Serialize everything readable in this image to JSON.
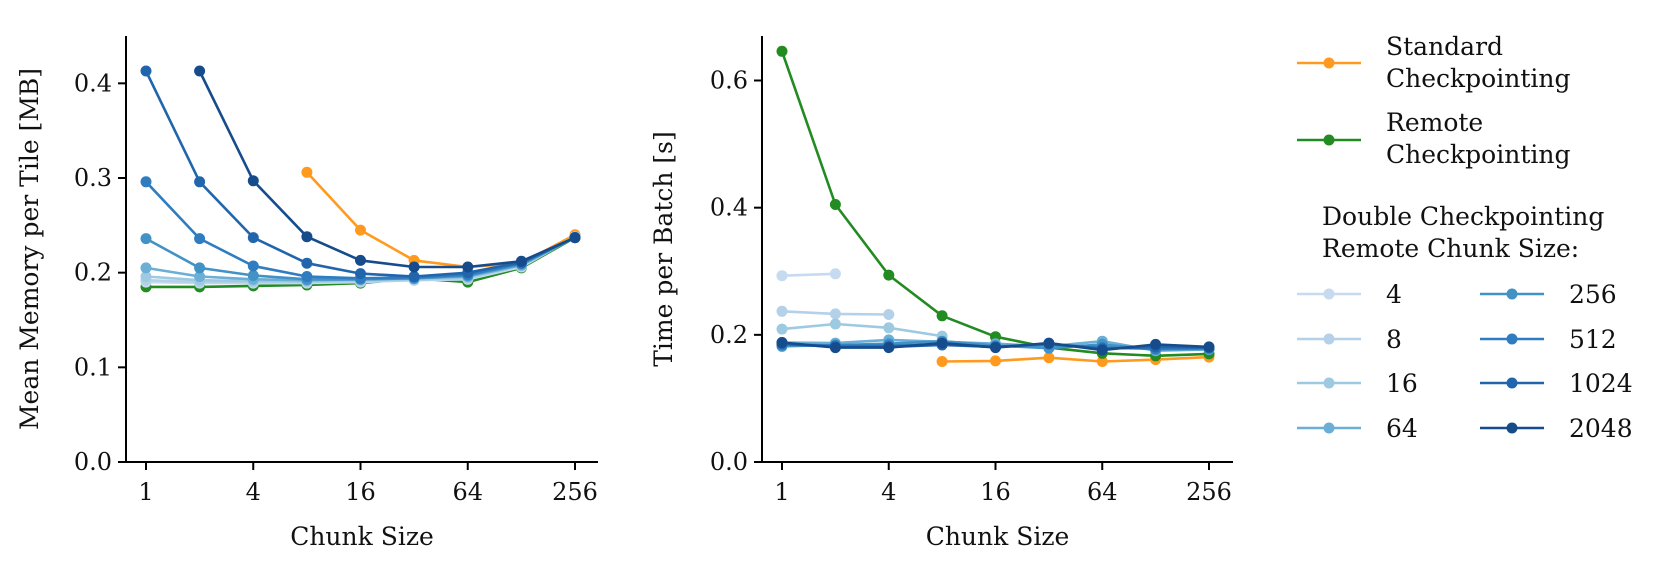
{
  "chart_data": [
    {
      "type": "line",
      "xscale": "log2",
      "x": [
        1,
        2,
        4,
        8,
        16,
        32,
        64,
        128,
        256
      ],
      "xticks": [
        1,
        4,
        16,
        64,
        256
      ],
      "xtick_labels": [
        "1",
        "4",
        "16",
        "64",
        "256"
      ],
      "xlabel": "Chunk Size",
      "ylabel": "Mean Memory per Tile [MB]",
      "ylim": [
        0,
        0.45
      ],
      "yticks": [
        0,
        0.1,
        0.2,
        0.3,
        0.4
      ],
      "ytick_labels": [
        "0.0",
        "0.1",
        "0.2",
        "0.3",
        "0.4"
      ],
      "series": [
        {
          "name": "Standard Checkpointing",
          "color": "#ff9a1f",
          "x": [
            8,
            16,
            32,
            64,
            128,
            256
          ],
          "values": [
            0.306,
            0.245,
            0.213,
            0.206,
            0.21,
            0.24
          ]
        },
        {
          "name": "Remote Checkpointing",
          "color": "#228b22",
          "x": [
            1,
            2,
            4,
            8,
            16,
            32,
            64,
            128,
            256
          ],
          "values": [
            0.185,
            0.185,
            0.186,
            0.187,
            0.189,
            0.194,
            0.19,
            0.205,
            0.237
          ]
        },
        {
          "name": "4",
          "color": "#c6dbef",
          "x": [
            1,
            2,
            4,
            8,
            16,
            32,
            64,
            128,
            256
          ],
          "values": [
            0.19,
            0.189,
            0.189,
            0.189,
            0.19,
            0.192,
            0.193,
            0.206,
            0.238
          ]
        },
        {
          "name": "8",
          "color": "#b4d1e9",
          "x": [
            1,
            2,
            4,
            8,
            16,
            32,
            64,
            128,
            256
          ],
          "values": [
            0.192,
            0.19,
            0.19,
            0.19,
            0.191,
            0.192,
            0.194,
            0.207,
            0.238
          ]
        },
        {
          "name": "16",
          "color": "#9ecae1",
          "x": [
            1,
            2,
            4,
            8,
            16,
            32,
            64,
            128,
            256
          ],
          "values": [
            0.196,
            0.192,
            0.191,
            0.191,
            0.192,
            0.193,
            0.195,
            0.208,
            0.238
          ]
        },
        {
          "name": "64",
          "color": "#6baed6",
          "x": [
            1,
            2,
            4,
            8,
            16,
            32,
            64,
            128,
            256
          ],
          "values": [
            0.205,
            0.196,
            0.193,
            0.192,
            0.193,
            0.194,
            0.196,
            0.208,
            0.237
          ]
        },
        {
          "name": "256",
          "color": "#4292c6",
          "x": [
            1,
            2,
            4,
            8,
            16,
            32,
            64,
            128,
            256
          ],
          "values": [
            0.236,
            0.205,
            0.197,
            0.193,
            0.193,
            0.194,
            0.197,
            0.209,
            0.237
          ]
        },
        {
          "name": "512",
          "color": "#2f7dc0",
          "x": [
            1,
            2,
            4,
            8,
            16,
            32,
            64,
            128,
            256
          ],
          "values": [
            0.296,
            0.236,
            0.207,
            0.196,
            0.194,
            0.195,
            0.198,
            0.21,
            0.237
          ]
        },
        {
          "name": "1024",
          "color": "#2166ac",
          "x": [
            1,
            2,
            4,
            8,
            16,
            32,
            64,
            128,
            256
          ],
          "values": [
            0.413,
            0.296,
            0.237,
            0.21,
            0.199,
            0.196,
            0.2,
            0.211,
            0.237
          ]
        },
        {
          "name": "2048",
          "color": "#164c8c",
          "x": [
            2,
            4,
            8,
            16,
            32,
            64,
            128,
            256
          ],
          "values": [
            0.413,
            0.297,
            0.238,
            0.213,
            0.206,
            0.206,
            0.212,
            0.237
          ]
        }
      ]
    },
    {
      "type": "line",
      "xscale": "log2",
      "x": [
        1,
        2,
        4,
        8,
        16,
        32,
        64,
        128,
        256
      ],
      "xticks": [
        1,
        4,
        16,
        64,
        256
      ],
      "xtick_labels": [
        "1",
        "4",
        "16",
        "64",
        "256"
      ],
      "xlabel": "Chunk Size",
      "ylabel": "Time per Batch [s]",
      "ylim": [
        0,
        0.67
      ],
      "yticks": [
        0,
        0.2,
        0.4,
        0.6
      ],
      "ytick_labels": [
        "0.0",
        "0.2",
        "0.4",
        "0.6"
      ],
      "series": [
        {
          "name": "Standard Checkpointing",
          "color": "#ff9a1f",
          "x": [
            8,
            16,
            32,
            64,
            128,
            256
          ],
          "values": [
            0.158,
            0.159,
            0.164,
            0.158,
            0.161,
            0.165
          ]
        },
        {
          "name": "Remote Checkpointing",
          "color": "#228b22",
          "x": [
            1,
            2,
            4,
            8,
            16,
            32,
            64,
            128,
            256
          ],
          "values": [
            0.646,
            0.405,
            0.294,
            0.23,
            0.197,
            0.18,
            0.171,
            0.167,
            0.17
          ]
        },
        {
          "name": "4",
          "color": "#c6dbef",
          "x": [
            1,
            2
          ],
          "values": [
            0.293,
            0.296
          ]
        },
        {
          "name": "8",
          "color": "#b4d1e9",
          "x": [
            1,
            2,
            4
          ],
          "values": [
            0.237,
            0.233,
            0.232
          ]
        },
        {
          "name": "16",
          "color": "#9ecae1",
          "x": [
            1,
            2,
            4,
            8
          ],
          "values": [
            0.209,
            0.217,
            0.211,
            0.198
          ]
        },
        {
          "name": "64",
          "color": "#6baed6",
          "x": [
            1,
            2,
            4,
            8,
            16,
            32,
            64,
            128,
            256
          ],
          "values": [
            0.188,
            0.187,
            0.192,
            0.189,
            0.186,
            0.182,
            0.19,
            0.175,
            0.177
          ]
        },
        {
          "name": "256",
          "color": "#4292c6",
          "x": [
            1,
            2,
            4,
            8,
            16,
            32,
            64,
            128,
            256
          ],
          "values": [
            0.182,
            0.184,
            0.186,
            0.19,
            0.183,
            0.179,
            0.185,
            0.177,
            0.178
          ]
        },
        {
          "name": "512",
          "color": "#2f7dc0",
          "x": [
            1,
            2,
            4,
            8,
            16,
            32,
            64,
            128,
            256
          ],
          "values": [
            0.185,
            0.183,
            0.183,
            0.185,
            0.181,
            0.185,
            0.18,
            0.178,
            0.179
          ]
        },
        {
          "name": "1024",
          "color": "#2166ac",
          "x": [
            1,
            2,
            4,
            8,
            16,
            32,
            64,
            128,
            256
          ],
          "values": [
            0.186,
            0.181,
            0.181,
            0.184,
            0.181,
            0.186,
            0.178,
            0.181,
            0.18
          ]
        },
        {
          "name": "2048",
          "color": "#164c8c",
          "x": [
            1,
            2,
            4,
            8,
            16,
            32,
            64,
            128,
            256
          ],
          "values": [
            0.188,
            0.18,
            0.18,
            0.187,
            0.18,
            0.187,
            0.176,
            0.185,
            0.181
          ]
        }
      ]
    }
  ],
  "legend": {
    "entries_top": [
      {
        "label": "Standard Checkpointing",
        "lines": [
          "Standard",
          "Checkpointing"
        ],
        "color": "#ff9a1f"
      },
      {
        "label": "Remote Checkpointing",
        "lines": [
          "Remote",
          "Checkpointing"
        ],
        "color": "#228b22"
      }
    ],
    "title_lines": [
      "Double Checkpointing",
      "Remote Chunk Size:"
    ],
    "col1": [
      {
        "label": "4",
        "color": "#c6dbef"
      },
      {
        "label": "8",
        "color": "#b4d1e9"
      },
      {
        "label": "16",
        "color": "#9ecae1"
      },
      {
        "label": "64",
        "color": "#6baed6"
      }
    ],
    "col2": [
      {
        "label": "256",
        "color": "#4292c6"
      },
      {
        "label": "512",
        "color": "#2f7dc0"
      },
      {
        "label": "1024",
        "color": "#2166ac"
      },
      {
        "label": "2048",
        "color": "#164c8c"
      }
    ]
  }
}
